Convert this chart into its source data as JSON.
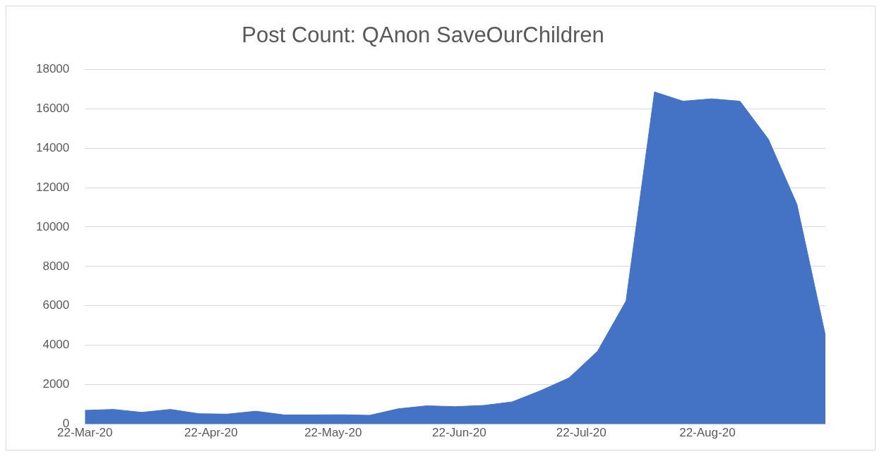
{
  "chart_data": {
    "type": "area",
    "title": "Post Count: QAnon SaveOurChildren",
    "x": [
      "2020-03-22",
      "2020-03-29",
      "2020-04-05",
      "2020-04-12",
      "2020-04-19",
      "2020-04-26",
      "2020-05-03",
      "2020-05-10",
      "2020-05-17",
      "2020-05-24",
      "2020-05-31",
      "2020-06-07",
      "2020-06-14",
      "2020-06-21",
      "2020-06-28",
      "2020-07-05",
      "2020-07-12",
      "2020-07-19",
      "2020-07-26",
      "2020-08-02",
      "2020-08-09",
      "2020-08-16",
      "2020-08-23",
      "2020-08-30",
      "2020-09-06",
      "2020-09-13",
      "2020-09-20"
    ],
    "values": [
      700,
      750,
      600,
      750,
      530,
      510,
      660,
      470,
      470,
      480,
      450,
      780,
      930,
      890,
      950,
      1130,
      1700,
      2350,
      3700,
      6250,
      16850,
      16380,
      16500,
      16380,
      14450,
      11150,
      4500
    ],
    "color": "#4472c4",
    "xlim": [
      "2020-03-22",
      "2020-09-20"
    ],
    "xticks": [
      {
        "value": "2020-03-22",
        "label": "22-Mar-20"
      },
      {
        "value": "2020-04-22",
        "label": "22-Apr-20"
      },
      {
        "value": "2020-05-22",
        "label": "22-May-20"
      },
      {
        "value": "2020-06-22",
        "label": "22-Jun-20"
      },
      {
        "value": "2020-07-22",
        "label": "22-Jul-20"
      },
      {
        "value": "2020-08-22",
        "label": "22-Aug-20"
      }
    ],
    "ylim": [
      0,
      18000
    ],
    "yticks": [
      0,
      2000,
      4000,
      6000,
      8000,
      10000,
      12000,
      14000,
      16000,
      18000
    ],
    "grid": "y",
    "legend": false
  }
}
